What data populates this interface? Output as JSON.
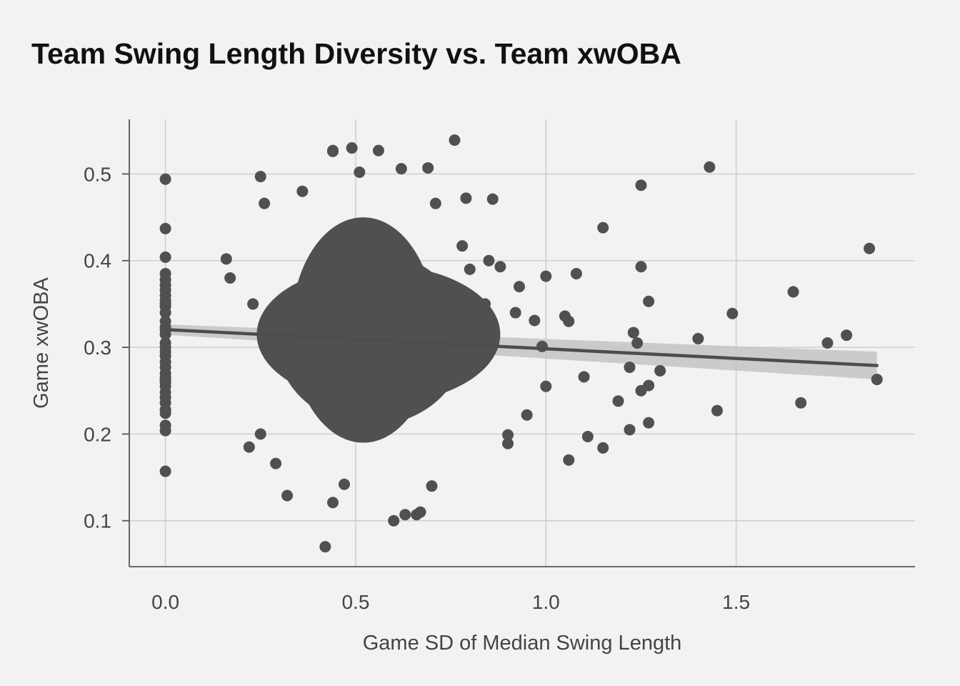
{
  "chart_data": {
    "type": "scatter",
    "title": "Team Swing Length Diversity vs. Team xwOBA",
    "xlabel": "Game SD of Median Swing Length",
    "ylabel": "Game xwOBA",
    "xlim": [
      -0.095,
      1.97
    ],
    "ylim": [
      0.047,
      0.563
    ],
    "x_ticks": [
      0.0,
      0.5,
      1.0,
      1.5
    ],
    "x_tick_labels": [
      "0.0",
      "0.5",
      "1.0",
      "1.5"
    ],
    "y_ticks": [
      0.1,
      0.2,
      0.3,
      0.4,
      0.5
    ],
    "y_tick_labels": [
      "0.1",
      "0.2",
      "0.3",
      "0.4",
      "0.5"
    ],
    "grid": true,
    "legend": "none",
    "colors": {
      "background": "#f2f2f2",
      "points": "#505050",
      "trend_line": "#4d4d4d",
      "confidence_band": "#c4c4c4",
      "grid": "#cfcfcf",
      "axis": "#555555"
    },
    "trend_line": {
      "method": "linear",
      "x": [
        0.0,
        1.87
      ],
      "y": [
        0.3205,
        0.279
      ],
      "ci_halfwidth": [
        0.006,
        0.016
      ]
    },
    "points": {
      "x": [
        0.0,
        0.0,
        0.0,
        0.0,
        0.0,
        0.0,
        0.0,
        0.0,
        0.0,
        0.0,
        0.0,
        0.0,
        0.0,
        0.0,
        0.0,
        0.0,
        0.0,
        0.0,
        0.0,
        0.0,
        0.0,
        0.0,
        0.0,
        0.0,
        0.0,
        0.0,
        0.0,
        0.0,
        0.0,
        0.0,
        0.0,
        0.0,
        0.0,
        0.0,
        0.0,
        1.43,
        1.25,
        1.85,
        1.25,
        1.15,
        1.08,
        1.0,
        1.65,
        1.27,
        1.23,
        1.49,
        1.4,
        1.74,
        1.79,
        1.87,
        1.22,
        1.25,
        1.19,
        1.24,
        1.27,
        1.45,
        1.67,
        1.27,
        1.22,
        1.11,
        1.15,
        1.06,
        1.0,
        1.1,
        1.3,
        1.05,
        1.06,
        0.97,
        0.99,
        0.95,
        0.9,
        0.9,
        0.6,
        0.42,
        0.44,
        0.7,
        0.67,
        0.47,
        0.22,
        0.32,
        0.29,
        0.63,
        0.66,
        0.44,
        0.36,
        0.79,
        0.17,
        0.16,
        0.25,
        0.26,
        0.86,
        0.8,
        0.78,
        0.85,
        0.88,
        0.93,
        0.84,
        0.92,
        0.44,
        0.62,
        0.51,
        0.76,
        0.71,
        0.69,
        0.56,
        0.49,
        0.23,
        0.25
      ],
      "y": [
        0.494,
        0.437,
        0.404,
        0.385,
        0.378,
        0.372,
        0.366,
        0.36,
        0.354,
        0.347,
        0.34,
        0.33,
        0.32,
        0.3,
        0.295,
        0.29,
        0.283,
        0.277,
        0.27,
        0.265,
        0.26,
        0.255,
        0.248,
        0.242,
        0.236,
        0.228,
        0.21,
        0.204,
        0.157,
        0.305,
        0.315,
        0.323,
        0.35,
        0.262,
        0.224,
        0.508,
        0.487,
        0.414,
        0.393,
        0.438,
        0.385,
        0.382,
        0.364,
        0.353,
        0.317,
        0.339,
        0.31,
        0.305,
        0.314,
        0.263,
        0.277,
        0.25,
        0.238,
        0.305,
        0.256,
        0.227,
        0.236,
        0.213,
        0.205,
        0.197,
        0.184,
        0.17,
        0.255,
        0.266,
        0.273,
        0.336,
        0.33,
        0.331,
        0.301,
        0.222,
        0.199,
        0.189,
        0.1,
        0.07,
        0.121,
        0.14,
        0.11,
        0.142,
        0.185,
        0.129,
        0.166,
        0.107,
        0.107,
        0.527,
        0.48,
        0.472,
        0.38,
        0.402,
        0.497,
        0.466,
        0.471,
        0.39,
        0.417,
        0.4,
        0.393,
        0.37,
        0.35,
        0.34,
        0.526,
        0.506,
        0.502,
        0.539,
        0.466,
        0.507,
        0.527,
        0.53,
        0.35,
        0.2
      ]
    }
  }
}
